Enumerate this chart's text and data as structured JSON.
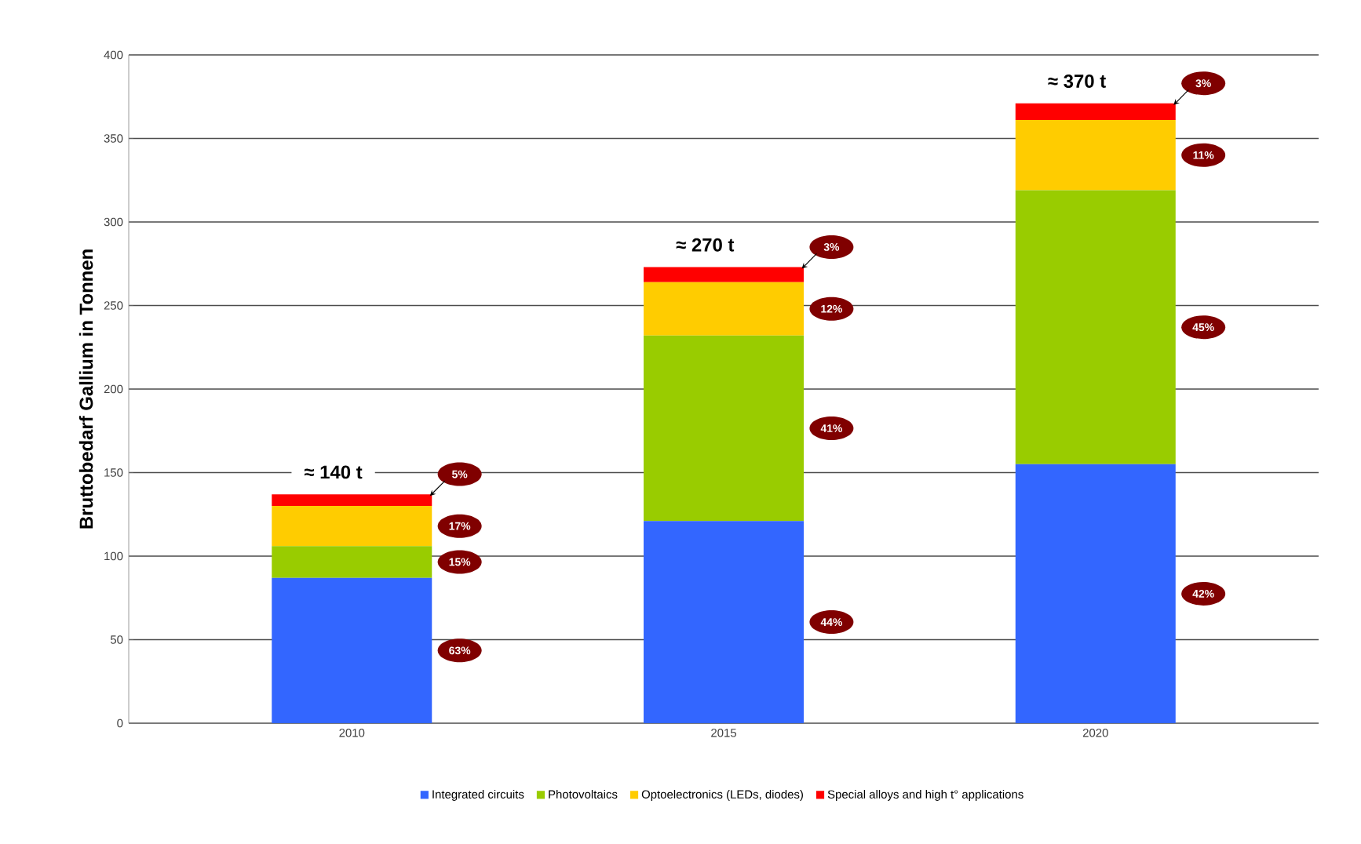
{
  "chart_data": {
    "type": "bar",
    "stacked": true,
    "ylabel": "Bruttobedarf Gallium in Tonnen",
    "categories": [
      "2010",
      "2015",
      "2020"
    ],
    "series": [
      {
        "name": "Integrated circuits",
        "color": "#3366ff",
        "values": [
          87,
          121,
          155
        ]
      },
      {
        "name": "Photovoltaics",
        "color": "#99cc00",
        "values": [
          19,
          111,
          164
        ]
      },
      {
        "name": "Optoelectronics (LEDs, diodes)",
        "color": "#ffcc00",
        "values": [
          24,
          32,
          42
        ]
      },
      {
        "name": "Special alloys and high t° applications",
        "color": "#ff0000",
        "values": [
          7,
          9,
          10
        ]
      }
    ],
    "annotations": [
      "63%",
      "15%",
      "17%",
      "5%",
      "44%",
      "41%",
      "12%",
      "3%",
      "42%",
      "45%",
      "11%",
      "3%",
      {
        "text": "≈ 140 t",
        "x": "2010",
        "y": 137
      },
      {
        "text": "≈ 270 t",
        "x": "2015",
        "y": 273
      },
      {
        "text": "≈ 370 t",
        "x": "2020",
        "y": 371
      }
    ],
    "ylim": [
      0,
      400
    ],
    "yticks": [
      0,
      50,
      100,
      150,
      200,
      250,
      300,
      350,
      400
    ],
    "grid": "y",
    "legend": "bottom"
  }
}
